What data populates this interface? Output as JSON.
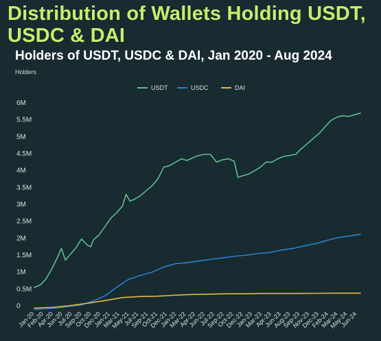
{
  "chart_data": {
    "type": "line",
    "title": "Distribution of Wallets Holding USDT, USDC & DAI",
    "subtitle": "Holders of USDT, USDC & DAI, Jan 2020 - Aug 2024",
    "xlabel": "",
    "ylabel": "Holders",
    "ylim": [
      0,
      6000000
    ],
    "y_ticks": [
      0,
      500000,
      1000000,
      1500000,
      2000000,
      2500000,
      3000000,
      3500000,
      4000000,
      4500000,
      5000000,
      5500000,
      6000000
    ],
    "y_tick_labels": [
      "0",
      "0.5M",
      "1M",
      "1.5M",
      "2M",
      "2.5M",
      "3M",
      "3.5M",
      "4M",
      "4.5M",
      "5M",
      "5.5M",
      "6M"
    ],
    "x_tick_labels": [
      "Jan-20",
      "Feb-20",
      "Apr-20",
      "Jun-20",
      "Jul-20",
      "Sep-20",
      "Oct-20",
      "Dec-20",
      "Jan-21",
      "Mar-21",
      "May-21",
      "Jul-21",
      "Sep-21",
      "Oct-21",
      "Dec-21",
      "Jan-22",
      "Mar-22",
      "Apr-22",
      "Jun-22",
      "Jul-22",
      "Sep-22",
      "Oct-22",
      "Dec-22",
      "Jan-23",
      "Mar-23",
      "Apr-23",
      "Jun-23",
      "Aug-23",
      "Sep-23",
      "Nov-23",
      "Dec-23",
      "Feb-24",
      "Mar-24",
      "May-24",
      "Jun-24"
    ],
    "legend_position": "top-center",
    "grid": false,
    "series": [
      {
        "name": "USDT",
        "color": "#5fbf8f",
        "points": [
          [
            "2020-01-01",
            550000
          ],
          [
            "2020-02-01",
            620000
          ],
          [
            "2020-03-01",
            800000
          ],
          [
            "2020-04-01",
            1100000
          ],
          [
            "2020-05-01",
            1450000
          ],
          [
            "2020-05-20",
            1700000
          ],
          [
            "2020-06-10",
            1350000
          ],
          [
            "2020-07-01",
            1500000
          ],
          [
            "2020-08-01",
            1700000
          ],
          [
            "2020-09-01",
            1980000
          ],
          [
            "2020-10-01",
            1800000
          ],
          [
            "2020-10-20",
            1750000
          ],
          [
            "2020-11-01",
            1950000
          ],
          [
            "2020-12-01",
            2100000
          ],
          [
            "2021-01-01",
            2350000
          ],
          [
            "2021-02-01",
            2600000
          ],
          [
            "2021-03-01",
            2750000
          ],
          [
            "2021-04-01",
            2950000
          ],
          [
            "2021-04-20",
            3300000
          ],
          [
            "2021-05-10",
            3100000
          ],
          [
            "2021-06-01",
            3150000
          ],
          [
            "2021-07-01",
            3250000
          ],
          [
            "2021-08-01",
            3400000
          ],
          [
            "2021-09-01",
            3550000
          ],
          [
            "2021-10-01",
            3750000
          ],
          [
            "2021-11-01",
            4100000
          ],
          [
            "2021-12-01",
            4150000
          ],
          [
            "2022-01-01",
            4250000
          ],
          [
            "2022-02-01",
            4350000
          ],
          [
            "2022-03-01",
            4300000
          ],
          [
            "2022-04-01",
            4380000
          ],
          [
            "2022-05-01",
            4450000
          ],
          [
            "2022-06-01",
            4480000
          ],
          [
            "2022-07-01",
            4480000
          ],
          [
            "2022-08-01",
            4250000
          ],
          [
            "2022-09-01",
            4320000
          ],
          [
            "2022-10-01",
            4350000
          ],
          [
            "2022-11-01",
            4280000
          ],
          [
            "2022-11-20",
            3800000
          ],
          [
            "2022-12-15",
            3850000
          ],
          [
            "2023-01-15",
            3900000
          ],
          [
            "2023-02-15",
            4000000
          ],
          [
            "2023-03-15",
            4100000
          ],
          [
            "2023-04-15",
            4250000
          ],
          [
            "2023-05-15",
            4250000
          ],
          [
            "2023-06-15",
            4350000
          ],
          [
            "2023-07-15",
            4420000
          ],
          [
            "2023-08-15",
            4450000
          ],
          [
            "2023-09-15",
            4480000
          ],
          [
            "2023-10-15",
            4650000
          ],
          [
            "2023-11-15",
            4800000
          ],
          [
            "2023-12-15",
            4950000
          ],
          [
            "2024-01-15",
            5100000
          ],
          [
            "2024-02-15",
            5300000
          ],
          [
            "2024-03-15",
            5480000
          ],
          [
            "2024-04-15",
            5580000
          ],
          [
            "2024-05-15",
            5620000
          ],
          [
            "2024-06-15",
            5600000
          ],
          [
            "2024-07-15",
            5650000
          ],
          [
            "2024-08-15",
            5700000
          ]
        ]
      },
      {
        "name": "USDC",
        "color": "#2d7fd0",
        "points": [
          [
            "2020-01-01",
            -100000
          ],
          [
            "2020-03-01",
            -80000
          ],
          [
            "2020-05-01",
            -60000
          ],
          [
            "2020-07-01",
            -10000
          ],
          [
            "2020-09-01",
            30000
          ],
          [
            "2020-11-01",
            150000
          ],
          [
            "2021-01-01",
            300000
          ],
          [
            "2021-03-01",
            550000
          ],
          [
            "2021-05-01",
            780000
          ],
          [
            "2021-07-01",
            900000
          ],
          [
            "2021-09-01",
            1000000
          ],
          [
            "2021-11-01",
            1150000
          ],
          [
            "2022-01-01",
            1250000
          ],
          [
            "2022-03-01",
            1280000
          ],
          [
            "2022-05-01",
            1330000
          ],
          [
            "2022-07-01",
            1380000
          ],
          [
            "2022-09-01",
            1420000
          ],
          [
            "2022-11-01",
            1470000
          ],
          [
            "2023-01-01",
            1500000
          ],
          [
            "2023-03-01",
            1550000
          ],
          [
            "2023-05-01",
            1580000
          ],
          [
            "2023-07-01",
            1650000
          ],
          [
            "2023-09-01",
            1700000
          ],
          [
            "2023-11-01",
            1780000
          ],
          [
            "2024-01-01",
            1850000
          ],
          [
            "2024-03-01",
            1950000
          ],
          [
            "2024-05-01",
            2030000
          ],
          [
            "2024-07-01",
            2080000
          ],
          [
            "2024-08-15",
            2120000
          ]
        ]
      },
      {
        "name": "DAI",
        "color": "#e8b84a",
        "points": [
          [
            "2020-01-01",
            -60000
          ],
          [
            "2020-04-01",
            -40000
          ],
          [
            "2020-07-01",
            10000
          ],
          [
            "2020-10-01",
            80000
          ],
          [
            "2021-01-01",
            160000
          ],
          [
            "2021-04-01",
            250000
          ],
          [
            "2021-07-01",
            280000
          ],
          [
            "2021-10-01",
            290000
          ],
          [
            "2022-01-01",
            320000
          ],
          [
            "2022-04-01",
            340000
          ],
          [
            "2022-07-01",
            350000
          ],
          [
            "2022-10-01",
            360000
          ],
          [
            "2023-01-01",
            360000
          ],
          [
            "2023-04-01",
            370000
          ],
          [
            "2023-07-01",
            370000
          ],
          [
            "2023-10-01",
            370000
          ],
          [
            "2024-01-01",
            375000
          ],
          [
            "2024-04-01",
            380000
          ],
          [
            "2024-08-15",
            380000
          ]
        ]
      }
    ]
  }
}
